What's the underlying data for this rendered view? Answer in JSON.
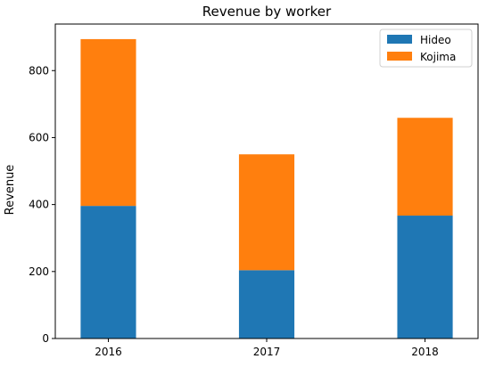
{
  "chart_data": {
    "type": "bar",
    "stacked": true,
    "title": "Revenue by worker",
    "xlabel": "",
    "ylabel": "Revenue",
    "categories": [
      "2016",
      "2017",
      "2018"
    ],
    "series": [
      {
        "name": "Hideo",
        "values": [
          396,
          204,
          367
        ],
        "color": "#1f77b4"
      },
      {
        "name": "Kojima",
        "values": [
          498,
          346,
          292
        ],
        "color": "#ff7f0e"
      }
    ],
    "ylim": [
      0,
      939
    ],
    "yticks": [
      0,
      200,
      400,
      600,
      800
    ],
    "grid": false,
    "legend_position": "top-right"
  }
}
